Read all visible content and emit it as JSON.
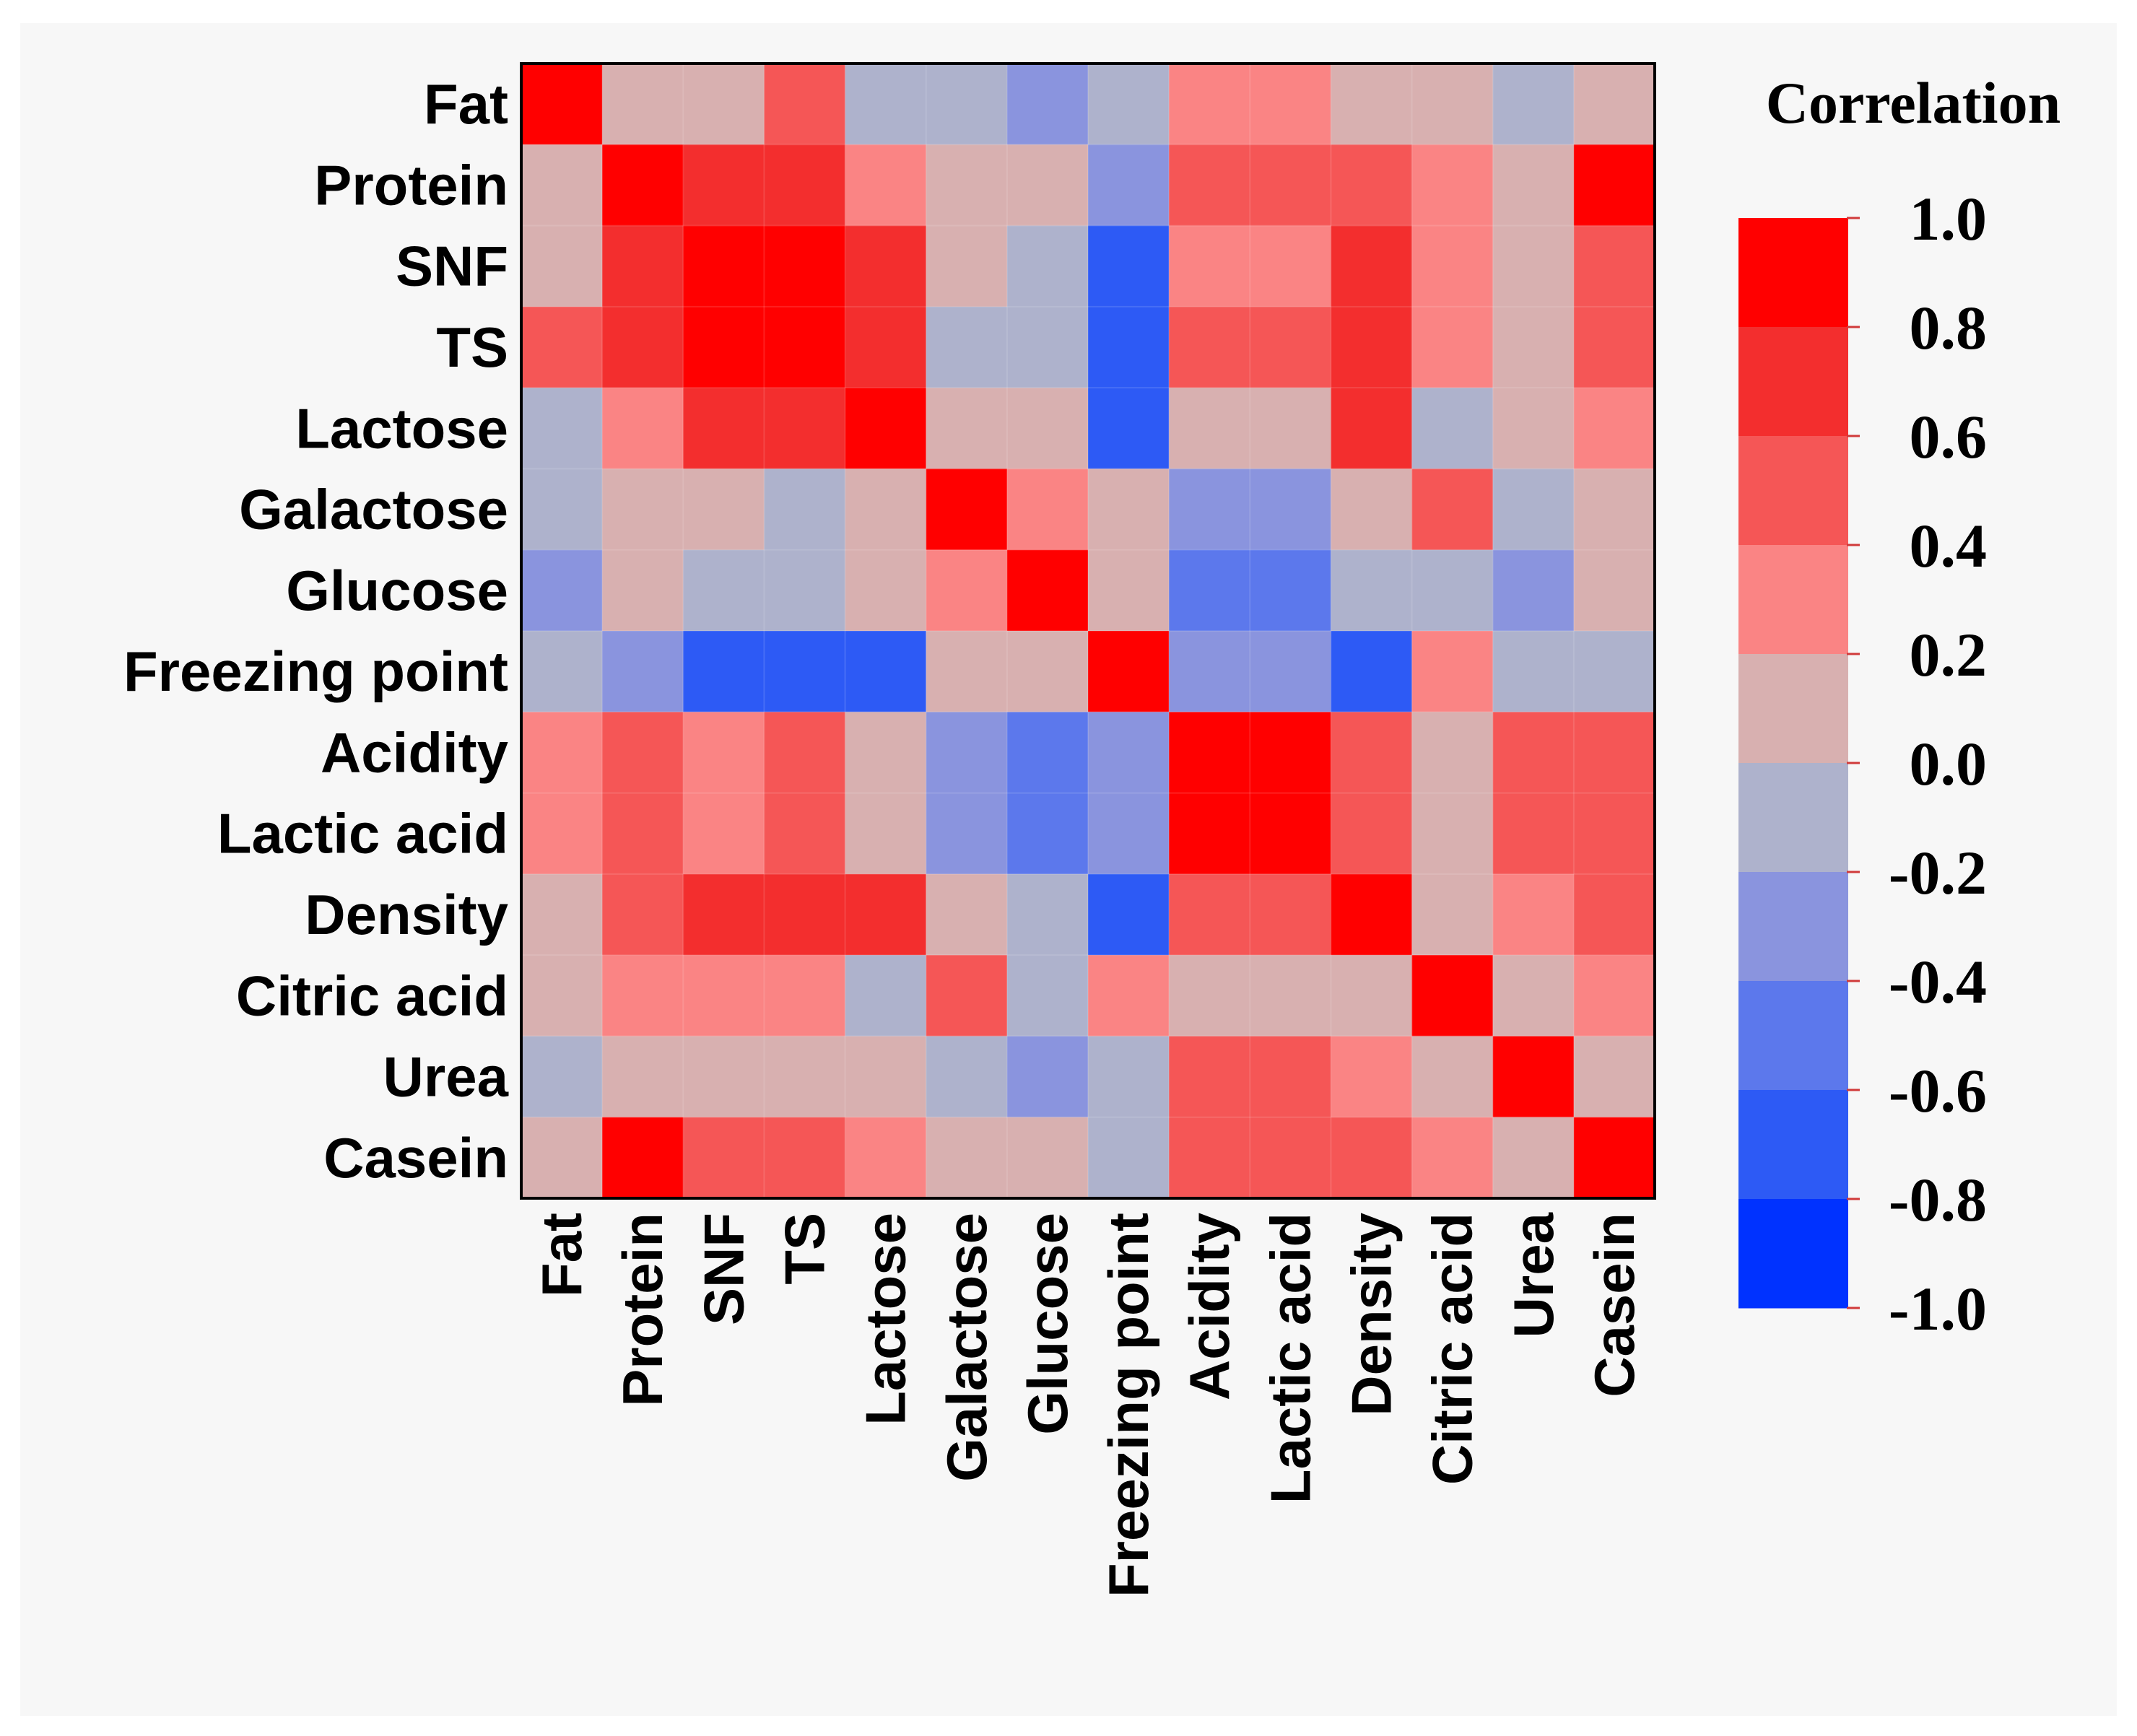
{
  "chart_data": {
    "type": "heatmap",
    "title": "",
    "variables": [
      "Fat",
      "Protein",
      "SNF",
      "TS",
      "Lactose",
      "Galactose",
      "Glucose",
      "Freezing point",
      "Acidity",
      "Lactic acid",
      "Density",
      "Citric acid",
      "Urea",
      "Casein"
    ],
    "matrix": [
      [
        1.0,
        0.1,
        0.1,
        0.5,
        -0.1,
        -0.1,
        -0.3,
        -0.1,
        0.3,
        0.3,
        0.1,
        0.1,
        -0.1,
        0.1
      ],
      [
        0.1,
        1.0,
        0.7,
        0.7,
        0.3,
        0.1,
        0.1,
        -0.3,
        0.5,
        0.5,
        0.5,
        0.3,
        0.1,
        1.0
      ],
      [
        0.1,
        0.7,
        1.0,
        0.9,
        0.7,
        0.1,
        -0.1,
        -0.7,
        0.3,
        0.3,
        0.7,
        0.3,
        0.1,
        0.5
      ],
      [
        0.5,
        0.7,
        0.9,
        1.0,
        0.7,
        -0.1,
        -0.1,
        -0.7,
        0.5,
        0.5,
        0.7,
        0.3,
        0.1,
        0.5
      ],
      [
        -0.1,
        0.3,
        0.7,
        0.7,
        1.0,
        0.1,
        0.1,
        -0.7,
        0.1,
        0.1,
        0.7,
        -0.1,
        0.1,
        0.3
      ],
      [
        -0.1,
        0.1,
        0.1,
        -0.1,
        0.1,
        1.0,
        0.3,
        0.1,
        -0.3,
        -0.3,
        0.1,
        0.5,
        -0.1,
        0.1
      ],
      [
        -0.3,
        0.1,
        -0.1,
        -0.1,
        0.1,
        0.3,
        1.0,
        0.1,
        -0.5,
        -0.5,
        -0.1,
        -0.1,
        -0.3,
        0.1
      ],
      [
        -0.1,
        -0.3,
        -0.7,
        -0.7,
        -0.7,
        0.1,
        0.1,
        1.0,
        -0.3,
        -0.3,
        -0.7,
        0.3,
        -0.1,
        -0.1
      ],
      [
        0.3,
        0.5,
        0.3,
        0.5,
        0.1,
        -0.3,
        -0.5,
        -0.3,
        1.0,
        0.9,
        0.5,
        0.1,
        0.5,
        0.5
      ],
      [
        0.3,
        0.5,
        0.3,
        0.5,
        0.1,
        -0.3,
        -0.5,
        -0.3,
        0.9,
        1.0,
        0.5,
        0.1,
        0.5,
        0.5
      ],
      [
        0.1,
        0.5,
        0.7,
        0.7,
        0.7,
        0.1,
        -0.1,
        -0.7,
        0.5,
        0.5,
        1.0,
        0.1,
        0.3,
        0.5
      ],
      [
        0.1,
        0.3,
        0.3,
        0.3,
        -0.1,
        0.5,
        -0.1,
        0.3,
        0.1,
        0.1,
        0.1,
        1.0,
        0.1,
        0.3
      ],
      [
        -0.1,
        0.1,
        0.1,
        0.1,
        0.1,
        -0.1,
        -0.3,
        -0.1,
        0.5,
        0.5,
        0.3,
        0.1,
        1.0,
        0.1
      ],
      [
        0.1,
        1.0,
        0.5,
        0.5,
        0.3,
        0.1,
        0.1,
        -0.1,
        0.5,
        0.5,
        0.5,
        0.3,
        0.1,
        1.0
      ]
    ],
    "legend": {
      "title": "Correlation",
      "ticks": [
        "1.0",
        "0.8",
        "0.6",
        "0.4",
        "0.2",
        "0.0",
        "-0.2",
        "-0.4",
        "-0.6",
        "-0.8",
        "-1.0"
      ],
      "range": [
        -1.0,
        1.0
      ],
      "placement": "right"
    },
    "colors": {
      "bins": [
        "#0032ff",
        "#2d5af5",
        "#5c78ec",
        "#8a94de",
        "#aeb2cc",
        "#d8b0b0",
        "#fa8484",
        "#f55656",
        "#f32e2e",
        "#ff0000"
      ],
      "outline": "#000000",
      "grid": "#ffffff"
    }
  }
}
